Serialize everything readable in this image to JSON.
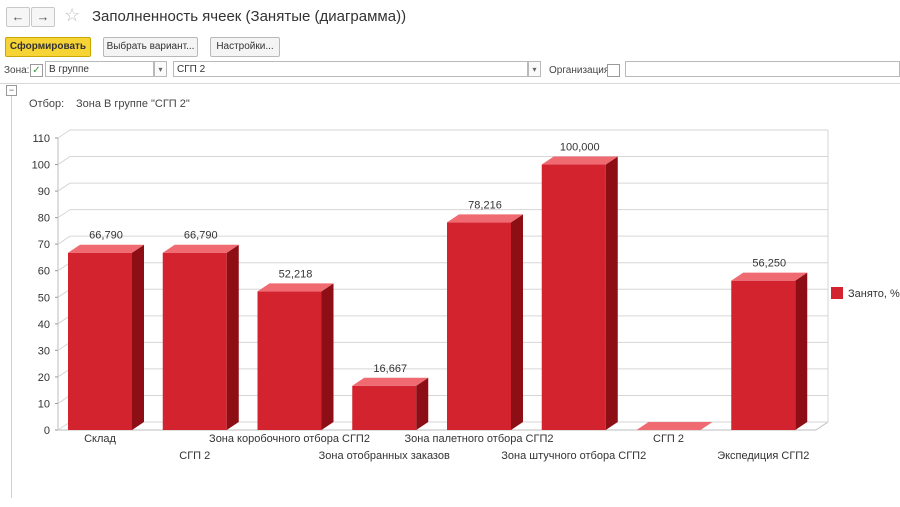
{
  "window": {
    "title": "Заполненность ячеек (Занятые (диаграмма))",
    "back_icon": "←",
    "forward_icon": "→",
    "favorite_icon": "☆"
  },
  "toolbar": {
    "generate_label": "Сформировать",
    "choose_variant_label": "Выбрать вариант...",
    "settings_label": "Настройки..."
  },
  "filters": {
    "zone_label": "Зона:",
    "zone_checked": true,
    "zone_condition": "В группе",
    "zone_value": "СГП 2",
    "organization_label": "Организация:",
    "organization_checked": false,
    "organization_value": ""
  },
  "report": {
    "otbor_label": "Отбор:",
    "otbor_value": "Зона В группе \"СГП 2\""
  },
  "colors": {
    "bar_front": "#d2232e",
    "bar_top": "#f06a72",
    "bar_side": "#8e0e15",
    "accent_button": "#f7d436"
  },
  "chart_data": {
    "type": "bar",
    "categories": [
      "Склад",
      "СГП 2",
      "Зона коробочного отбора СГП2",
      "Зона отобранных заказов",
      "Зона палетного отбора СГП2",
      "Зона штучного отбора СГП2",
      "СГП 2",
      "Экспедиция СГП2"
    ],
    "series": [
      {
        "name": "Занято, %",
        "values": [
          66.79,
          66.79,
          52.218,
          16.667,
          78.216,
          100.0,
          0,
          56.25
        ],
        "labels": [
          "66,790",
          "66,790",
          "52,218",
          "16,667",
          "78,216",
          "100,000",
          "",
          "56,250"
        ]
      }
    ],
    "ylim": [
      0,
      110
    ],
    "yticks": [
      0,
      10,
      20,
      30,
      40,
      50,
      60,
      70,
      80,
      90,
      100,
      110
    ],
    "grid": true,
    "legend": "right",
    "three_d": true
  }
}
